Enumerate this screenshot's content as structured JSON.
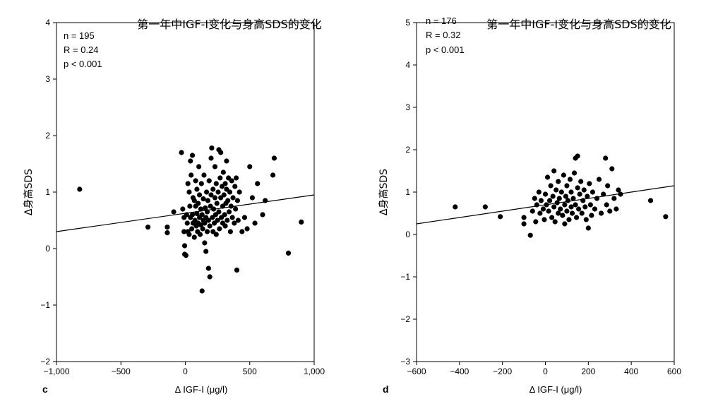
{
  "chart_data": [
    {
      "type": "scatter",
      "panel_label": "c",
      "title": "第一年中IGF-I变化与身高SDS的变化",
      "stats": [
        "n = 195",
        "R = 0.24",
        "p < 0.001"
      ],
      "xlabel": "Δ IGF-I (μg/l)",
      "ylabel": "Δ身高SDS",
      "xlim": [
        -1000,
        1000
      ],
      "ylim": [
        -2,
        4
      ],
      "xticks": [
        -1000,
        -500,
        0,
        500,
        1000
      ],
      "xtick_labels": [
        "−1,000",
        "−500",
        "0",
        "500",
        "1,000"
      ],
      "yticks": [
        -2,
        -1,
        0,
        1,
        2,
        3,
        4
      ],
      "ytick_labels": [
        "−2",
        "−1",
        "0",
        "1",
        "2",
        "3",
        "4"
      ],
      "grid": false,
      "fit_line": [
        [
          -1000,
          0.3
        ],
        [
          1000,
          0.95
        ]
      ],
      "points": [
        [
          -820,
          1.05
        ],
        [
          -290,
          0.38
        ],
        [
          -140,
          0.38
        ],
        [
          -140,
          0.28
        ],
        [
          -90,
          0.65
        ],
        [
          -30,
          1.7
        ],
        [
          -20,
          0.7
        ],
        [
          -10,
          0.55
        ],
        [
          -10,
          0.3
        ],
        [
          -5,
          0.05
        ],
        [
          -5,
          -0.1
        ],
        [
          5,
          -0.12
        ],
        [
          10,
          0.6
        ],
        [
          15,
          0.45
        ],
        [
          20,
          0.3
        ],
        [
          20,
          1.15
        ],
        [
          30,
          1.0
        ],
        [
          30,
          0.25
        ],
        [
          35,
          0.75
        ],
        [
          40,
          0.55
        ],
        [
          40,
          1.55
        ],
        [
          45,
          1.3
        ],
        [
          50,
          0.35
        ],
        [
          55,
          0.6
        ],
        [
          55,
          1.65
        ],
        [
          60,
          0.45
        ],
        [
          60,
          0.9
        ],
        [
          70,
          0.85
        ],
        [
          70,
          0.2
        ],
        [
          75,
          0.5
        ],
        [
          80,
          0.75
        ],
        [
          80,
          1.2
        ],
        [
          85,
          0.4
        ],
        [
          90,
          0.62
        ],
        [
          90,
          1.05
        ],
        [
          95,
          0.3
        ],
        [
          100,
          0.8
        ],
        [
          100,
          0.45
        ],
        [
          105,
          1.45
        ],
        [
          110,
          0.55
        ],
        [
          110,
          0.95
        ],
        [
          115,
          0.25
        ],
        [
          120,
          0.7
        ],
        [
          120,
          0.42
        ],
        [
          125,
          1.15
        ],
        [
          130,
          -0.75
        ],
        [
          130,
          0.6
        ],
        [
          135,
          0.35
        ],
        [
          140,
          0.88
        ],
        [
          140,
          0.5
        ],
        [
          145,
          1.3
        ],
        [
          150,
          0.1
        ],
        [
          150,
          0.45
        ],
        [
          155,
          0.72
        ],
        [
          160,
          -0.05
        ],
        [
          160,
          0.55
        ],
        [
          165,
          1.0
        ],
        [
          170,
          0.3
        ],
        [
          170,
          0.65
        ],
        [
          175,
          0.85
        ],
        [
          180,
          -0.35
        ],
        [
          180,
          0.5
        ],
        [
          185,
          1.2
        ],
        [
          190,
          -0.5
        ],
        [
          190,
          0.4
        ],
        [
          195,
          0.75
        ],
        [
          200,
          1.6
        ],
        [
          200,
          0.95
        ],
        [
          205,
          1.78
        ],
        [
          210,
          0.55
        ],
        [
          215,
          0.3
        ],
        [
          215,
          1.05
        ],
        [
          220,
          0.7
        ],
        [
          225,
          0.45
        ],
        [
          230,
          0.9
        ],
        [
          230,
          1.45
        ],
        [
          235,
          0.6
        ],
        [
          240,
          1.15
        ],
        [
          240,
          0.25
        ],
        [
          245,
          0.8
        ],
        [
          250,
          0.5
        ],
        [
          255,
          1.0
        ],
        [
          260,
          0.65
        ],
        [
          260,
          1.75
        ],
        [
          265,
          0.35
        ],
        [
          270,
          1.25
        ],
        [
          275,
          0.9
        ],
        [
          275,
          1.7
        ],
        [
          280,
          0.55
        ],
        [
          285,
          1.1
        ],
        [
          290,
          0.45
        ],
        [
          290,
          0.75
        ],
        [
          295,
          1.35
        ],
        [
          300,
          0.95
        ],
        [
          305,
          0.6
        ],
        [
          310,
          1.15
        ],
        [
          310,
          0.4
        ],
        [
          315,
          0.8
        ],
        [
          320,
          1.05
        ],
        [
          320,
          1.55
        ],
        [
          325,
          0.5
        ],
        [
          330,
          0.85
        ],
        [
          335,
          1.25
        ],
        [
          340,
          0.65
        ],
        [
          345,
          1.0
        ],
        [
          350,
          0.3
        ],
        [
          355,
          0.75
        ],
        [
          360,
          1.2
        ],
        [
          365,
          0.55
        ],
        [
          370,
          0.9
        ],
        [
          380,
          0.45
        ],
        [
          385,
          1.1
        ],
        [
          390,
          0.7
        ],
        [
          395,
          1.25
        ],
        [
          400,
          -0.38
        ],
        [
          405,
          0.85
        ],
        [
          410,
          0.5
        ],
        [
          420,
          1.0
        ],
        [
          440,
          0.3
        ],
        [
          460,
          0.55
        ],
        [
          480,
          0.35
        ],
        [
          500,
          1.45
        ],
        [
          520,
          0.9
        ],
        [
          540,
          0.45
        ],
        [
          560,
          1.15
        ],
        [
          600,
          0.6
        ],
        [
          620,
          0.85
        ],
        [
          680,
          1.3
        ],
        [
          690,
          1.6
        ],
        [
          800,
          -0.08
        ],
        [
          900,
          0.47
        ]
      ]
    },
    {
      "type": "scatter",
      "panel_label": "d",
      "title": "第一年中IGF-I变化与身高SDS的变化",
      "stats": [
        "n = 176",
        "R = 0.32",
        "p < 0.001"
      ],
      "xlabel": "Δ IGF-I (μg/l)",
      "ylabel": "Δ身高SDS",
      "xlim": [
        -600,
        600
      ],
      "ylim": [
        -3,
        5
      ],
      "xticks": [
        -600,
        -400,
        -200,
        0,
        200,
        400,
        600
      ],
      "xtick_labels": [
        "−600",
        "−400",
        "−200",
        "0",
        "200",
        "400",
        "600"
      ],
      "yticks": [
        -3,
        -2,
        -1,
        0,
        1,
        2,
        3,
        4,
        5
      ],
      "ytick_labels": [
        "−3",
        "−2",
        "−1",
        "0",
        "1",
        "2",
        "3",
        "4",
        "5"
      ],
      "grid": false,
      "fit_line": [
        [
          -600,
          0.25
        ],
        [
          600,
          1.15
        ]
      ],
      "points": [
        [
          -420,
          0.65
        ],
        [
          -280,
          0.65
        ],
        [
          -210,
          0.42
        ],
        [
          -100,
          0.4
        ],
        [
          -100,
          0.25
        ],
        [
          -70,
          -0.02
        ],
        [
          -60,
          0.55
        ],
        [
          -50,
          0.85
        ],
        [
          -45,
          0.3
        ],
        [
          -40,
          0.7
        ],
        [
          -30,
          1.0
        ],
        [
          -25,
          0.5
        ],
        [
          -20,
          0.8
        ],
        [
          -10,
          0.6
        ],
        [
          -5,
          0.35
        ],
        [
          0,
          0.95
        ],
        [
          5,
          0.7
        ],
        [
          10,
          1.35
        ],
        [
          15,
          0.55
        ],
        [
          20,
          0.8
        ],
        [
          25,
          1.15
        ],
        [
          30,
          0.4
        ],
        [
          35,
          0.9
        ],
        [
          40,
          0.65
        ],
        [
          40,
          1.5
        ],
        [
          45,
          0.3
        ],
        [
          50,
          1.05
        ],
        [
          55,
          0.75
        ],
        [
          60,
          0.5
        ],
        [
          60,
          1.25
        ],
        [
          65,
          0.85
        ],
        [
          70,
          0.6
        ],
        [
          75,
          1.0
        ],
        [
          80,
          0.45
        ],
        [
          85,
          1.4
        ],
        [
          90,
          0.7
        ],
        [
          90,
          0.25
        ],
        [
          95,
          0.9
        ],
        [
          100,
          1.15
        ],
        [
          100,
          0.55
        ],
        [
          105,
          0.8
        ],
        [
          110,
          0.35
        ],
        [
          115,
          1.3
        ],
        [
          120,
          0.65
        ],
        [
          120,
          1.0
        ],
        [
          125,
          0.5
        ],
        [
          130,
          0.85
        ],
        [
          135,
          1.45
        ],
        [
          140,
          0.7
        ],
        [
          140,
          1.8
        ],
        [
          145,
          0.4
        ],
        [
          150,
          1.1
        ],
        [
          150,
          1.85
        ],
        [
          155,
          0.6
        ],
        [
          160,
          0.95
        ],
        [
          165,
          1.25
        ],
        [
          170,
          0.5
        ],
        [
          175,
          0.8
        ],
        [
          180,
          1.05
        ],
        [
          185,
          0.65
        ],
        [
          190,
          0.35
        ],
        [
          195,
          0.9
        ],
        [
          200,
          0.15
        ],
        [
          205,
          1.2
        ],
        [
          210,
          0.7
        ],
        [
          215,
          0.45
        ],
        [
          220,
          1.0
        ],
        [
          230,
          0.6
        ],
        [
          240,
          0.85
        ],
        [
          250,
          1.3
        ],
        [
          260,
          0.5
        ],
        [
          270,
          0.95
        ],
        [
          280,
          1.8
        ],
        [
          285,
          0.7
        ],
        [
          290,
          1.15
        ],
        [
          300,
          0.55
        ],
        [
          310,
          1.55
        ],
        [
          320,
          0.85
        ],
        [
          330,
          0.6
        ],
        [
          340,
          1.05
        ],
        [
          350,
          0.95
        ],
        [
          490,
          0.8
        ],
        [
          560,
          0.42
        ]
      ]
    }
  ]
}
